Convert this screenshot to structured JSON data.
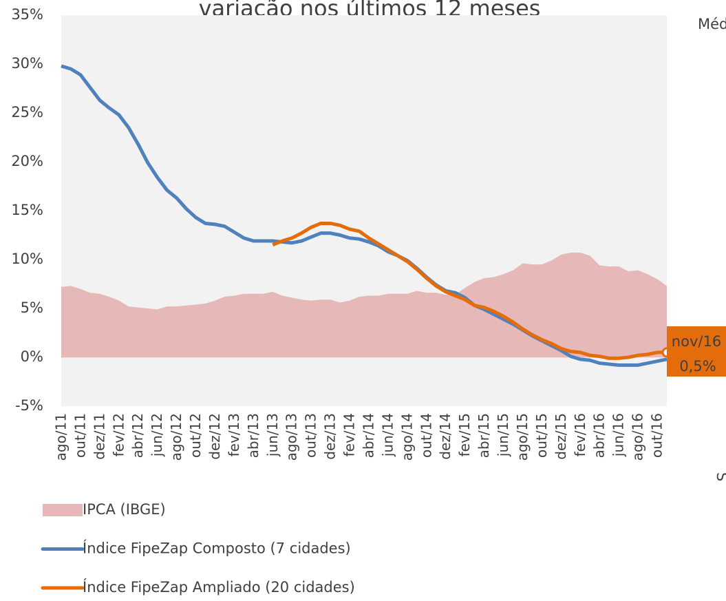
{
  "chart_data": {
    "type": "line",
    "title": "variação nos últimos 12 meses",
    "side_notes": [
      "Méd",
      "S"
    ],
    "categories": [
      "ago/11",
      null,
      "out/11",
      null,
      "dez/11",
      null,
      "fev/12",
      null,
      "abr/12",
      null,
      "jun/12",
      null,
      "ago/12",
      null,
      "out/12",
      null,
      "dez/12",
      null,
      "fev/13",
      null,
      "abr/13",
      null,
      "jun/13",
      null,
      "ago/13",
      null,
      "out/13",
      null,
      "dez/13",
      null,
      "fev/14",
      null,
      "abr/14",
      null,
      "jun/14",
      null,
      "ago/14",
      null,
      "out/14",
      null,
      "dez/14",
      null,
      "fev/15",
      null,
      "abr/15",
      null,
      "jun/15",
      null,
      "ago/15",
      null,
      "out/15",
      null,
      "dez/15",
      null,
      "fev/16",
      null,
      "abr/16",
      null,
      "jun/16",
      null,
      "ago/16",
      null,
      "out/16",
      null
    ],
    "series": [
      {
        "name": "IPCA (IBGE)",
        "kind": "area",
        "color": "#e6b9b8",
        "values": [
          7.2,
          7.3,
          7.0,
          6.6,
          6.5,
          6.2,
          5.8,
          5.2,
          5.1,
          5.0,
          4.9,
          5.2,
          5.2,
          5.3,
          5.4,
          5.5,
          5.8,
          6.2,
          6.3,
          6.5,
          6.5,
          6.5,
          6.7,
          6.3,
          6.1,
          5.9,
          5.8,
          5.9,
          5.9,
          5.6,
          5.8,
          6.2,
          6.3,
          6.3,
          6.5,
          6.5,
          6.5,
          6.8,
          6.6,
          6.6,
          6.4,
          6.4,
          7.1,
          7.7,
          8.1,
          8.2,
          8.5,
          8.9,
          9.6,
          9.5,
          9.5,
          9.9,
          10.5,
          10.7,
          10.7,
          10.4,
          9.4,
          9.3,
          9.3,
          8.8,
          8.9,
          8.5,
          8.0,
          7.3
        ]
      },
      {
        "name": "Índice FipeZap Composto (7 cidades)",
        "kind": "line",
        "color": "#4f81bd",
        "values": [
          29.8,
          29.5,
          28.9,
          27.6,
          26.3,
          25.5,
          24.8,
          23.5,
          21.8,
          19.9,
          18.4,
          17.1,
          16.3,
          15.2,
          14.3,
          13.7,
          13.6,
          13.4,
          12.8,
          12.2,
          11.9,
          11.9,
          11.9,
          11.8,
          11.7,
          11.9,
          12.3,
          12.7,
          12.7,
          12.5,
          12.2,
          12.1,
          11.8,
          11.4,
          10.8,
          10.4,
          9.9,
          9.1,
          8.2,
          7.4,
          6.8,
          6.6,
          6.1,
          5.3,
          4.9,
          4.4,
          3.9,
          3.4,
          2.8,
          2.2,
          1.7,
          1.2,
          0.7,
          0.1,
          -0.2,
          -0.3,
          -0.6,
          -0.7,
          -0.8,
          -0.8,
          -0.8,
          -0.6,
          -0.4,
          -0.2
        ]
      },
      {
        "name": "Índice FipeZap Ampliado (20 cidades)",
        "kind": "line",
        "color": "#e46c0a",
        "values": [
          null,
          null,
          null,
          null,
          null,
          null,
          null,
          null,
          null,
          null,
          null,
          null,
          null,
          null,
          null,
          null,
          null,
          null,
          null,
          null,
          null,
          null,
          11.5,
          11.9,
          12.2,
          12.7,
          13.3,
          13.7,
          13.7,
          13.5,
          13.1,
          12.9,
          12.2,
          11.6,
          11.0,
          10.4,
          9.8,
          9.0,
          8.1,
          7.3,
          6.7,
          6.3,
          5.9,
          5.3,
          5.1,
          4.7,
          4.2,
          3.6,
          2.9,
          2.3,
          1.8,
          1.4,
          0.9,
          0.6,
          0.5,
          0.2,
          0.1,
          -0.1,
          -0.1,
          0.0,
          0.2,
          0.3,
          0.5,
          0.5
        ]
      }
    ],
    "annotation": {
      "date": "nov/16",
      "value": "0,5%"
    },
    "ylim": [
      -5,
      35
    ],
    "yticks": [
      {
        "value": -5,
        "label": "-5%"
      },
      {
        "value": 0,
        "label": "0%"
      },
      {
        "value": 5,
        "label": "5%"
      },
      {
        "value": 10,
        "label": "10%"
      },
      {
        "value": 15,
        "label": "15%"
      },
      {
        "value": 20,
        "label": "20%"
      },
      {
        "value": 25,
        "label": "25%"
      },
      {
        "value": 30,
        "label": "30%"
      },
      {
        "value": 35,
        "label": "35%"
      }
    ],
    "plot_background": "#f2f2f2"
  }
}
